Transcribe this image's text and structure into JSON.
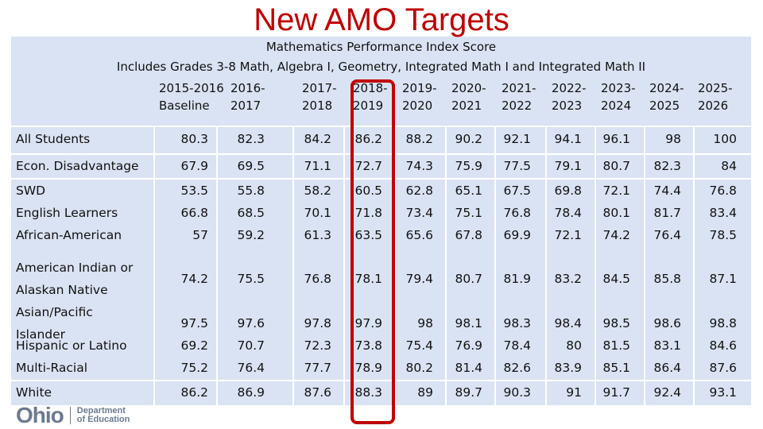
{
  "title": "New AMO Targets",
  "subtitle_line1": "Mathematics Performance Index Score",
  "subtitle_line2": "Includes Grades 3-8 Math, Algebra I, Geometry, Integrated Math I and Integrated Math II",
  "years": [
    {
      "line1": "2015-2016",
      "line2": "Baseline"
    },
    {
      "line1": "2016-",
      "line2": "2017"
    },
    {
      "line1": "2017-",
      "line2": "2018"
    },
    {
      "line1": "2018-",
      "line2": "2019"
    },
    {
      "line1": "2019-",
      "line2": "2020"
    },
    {
      "line1": "2020-",
      "line2": "2021"
    },
    {
      "line1": "2021-",
      "line2": "2022"
    },
    {
      "line1": "2022-",
      "line2": "2023"
    },
    {
      "line1": "2023-",
      "line2": "2024"
    },
    {
      "line1": "2024-",
      "line2": "2025"
    },
    {
      "line1": "2025-",
      "line2": "2026"
    }
  ],
  "rows": [
    {
      "label": "All Students",
      "values": [
        "80.3",
        "82.3",
        "84.2",
        "86.2",
        "88.2",
        "90.2",
        "92.1",
        "94.1",
        "96.1",
        "98",
        "100"
      ]
    },
    {
      "label": "Econ. Disadvantage",
      "values": [
        "67.9",
        "69.5",
        "71.1",
        "72.7",
        "74.3",
        "75.9",
        "77.5",
        "79.1",
        "80.7",
        "82.3",
        "84"
      ]
    },
    {
      "label": "SWD",
      "values": [
        "53.5",
        "55.8",
        "58.2",
        "60.5",
        "62.8",
        "65.1",
        "67.5",
        "69.8",
        "72.1",
        "74.4",
        "76.8"
      ]
    },
    {
      "label": "English Learners",
      "values": [
        "66.8",
        "68.5",
        "70.1",
        "71.8",
        "73.4",
        "75.1",
        "76.8",
        "78.4",
        "80.1",
        "81.7",
        "83.4"
      ]
    },
    {
      "label": "African-American",
      "values": [
        "57",
        "59.2",
        "61.3",
        "63.5",
        "65.6",
        "67.8",
        "69.9",
        "72.1",
        "74.2",
        "76.4",
        "78.5"
      ]
    },
    {
      "label": "American Indian or",
      "label2": "Alaskan Native",
      "values": [
        "74.2",
        "75.5",
        "76.8",
        "78.1",
        "79.4",
        "80.7",
        "81.9",
        "83.2",
        "84.5",
        "85.8",
        "87.1"
      ]
    },
    {
      "label": "Asian/Pacific",
      "label2": "Islander",
      "values": [
        "97.5",
        "97.6",
        "97.8",
        "97.9",
        "98",
        "98.1",
        "98.3",
        "98.4",
        "98.5",
        "98.6",
        "98.8"
      ]
    },
    {
      "label": "Hispanic or Latino",
      "values": [
        "69.2",
        "70.7",
        "72.3",
        "73.8",
        "75.4",
        "76.9",
        "78.4",
        "80",
        "81.5",
        "83.1",
        "84.6"
      ]
    },
    {
      "label": "Multi-Racial",
      "values": [
        "75.2",
        "76.4",
        "77.7",
        "78.9",
        "80.2",
        "81.4",
        "82.6",
        "83.9",
        "85.1",
        "86.4",
        "87.6"
      ]
    },
    {
      "label": "White",
      "values": [
        "86.2",
        "86.9",
        "87.6",
        "88.3",
        "89",
        "89.7",
        "90.3",
        "91",
        "91.7",
        "92.4",
        "93.1"
      ]
    }
  ],
  "logo": {
    "mark": "Ohio",
    "line1": "Department",
    "line2": "of Education"
  },
  "colors": {
    "title": "#c00000",
    "panel": "#dae3f3",
    "highlight": "#c00000"
  }
}
